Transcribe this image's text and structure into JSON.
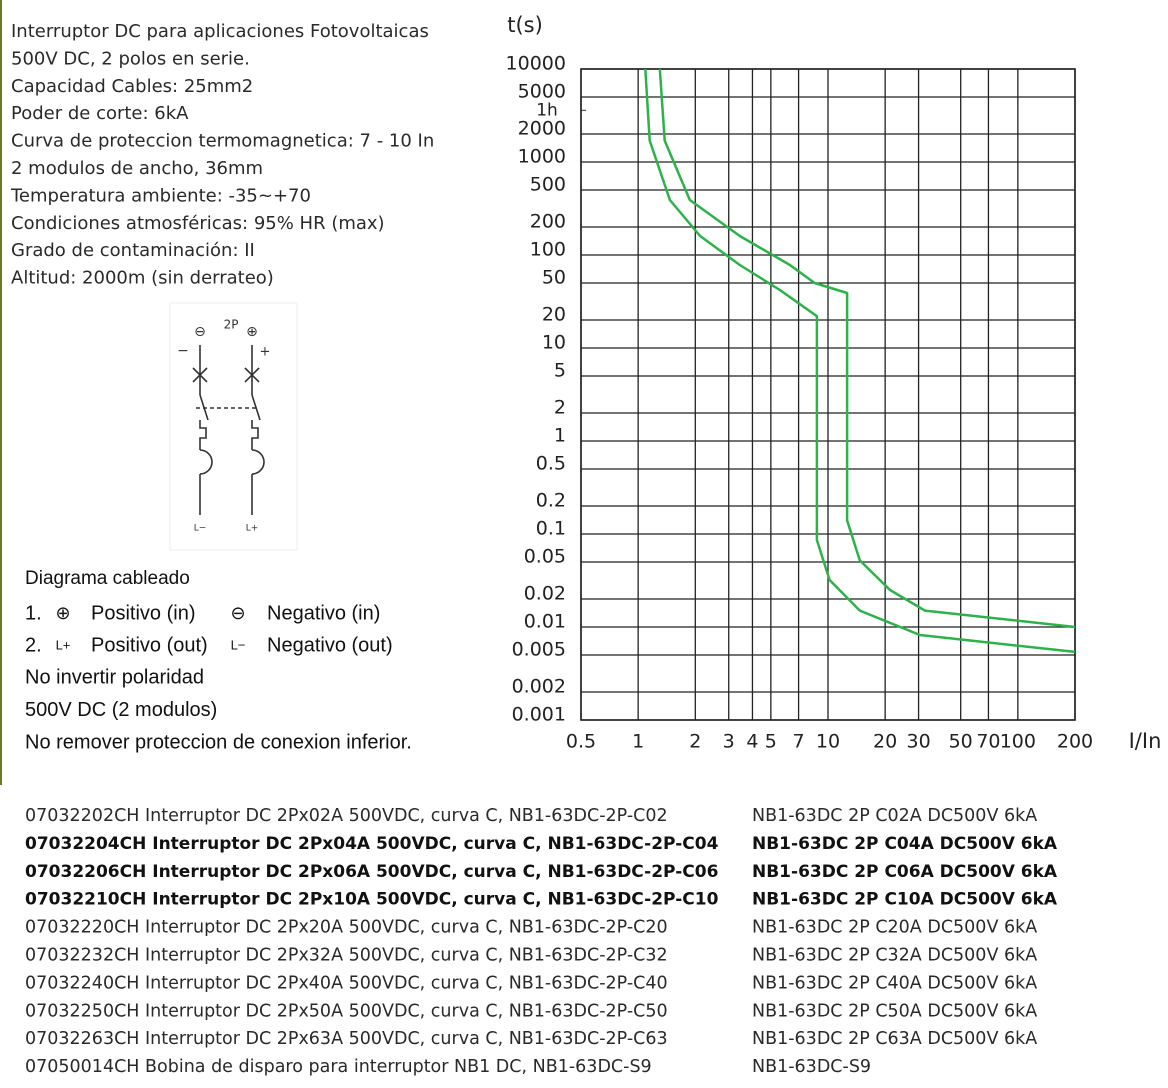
{
  "specs": [
    "Interruptor DC para aplicaciones Fotovoltaicas",
    "500V DC, 2 polos en serie.",
    "Capacidad Cables: 25mm2",
    "Poder de corte: 6kA",
    "Curva de proteccion termomagnetica: 7 - 10 In",
    "2 modulos de ancho, 36mm",
    "Temperatura ambiente: -35~+70",
    "Condiciones atmosféricas: 95% HR (max)",
    "Grado de contaminación: II",
    "Altitud: 2000m (sin derrateo)"
  ],
  "wiring_diagram": {
    "minus_symbol": "⊖",
    "pole_label": "2P",
    "plus_symbol": "⊕",
    "minus_sign": "−",
    "plus_sign": "+",
    "out_minus": "L−",
    "out_plus": "L+"
  },
  "legend": {
    "title": "Diagrama  cableado",
    "items": [
      {
        "number": "1.",
        "plus_symbol": "⊕",
        "plus_text": "Positivo (in)",
        "minus_symbol": "⊖",
        "minus_text": "Negativo (in)"
      },
      {
        "number": "2.",
        "plus_symbol": "L+",
        "plus_text": "Positivo (out)",
        "minus_symbol": "L−",
        "minus_text": "Negativo (out)"
      }
    ],
    "notes": [
      "No invertir polaridad",
      "500V DC (2 modulos)",
      "No remover proteccion de conexion inferior."
    ]
  },
  "chart_data": {
    "type": "line",
    "y_label": "t(s)",
    "x_label": "I/In",
    "log_x": true,
    "log_y": true,
    "grid": true,
    "xlim": [
      0.5,
      200
    ],
    "xticks": [
      0.5,
      1,
      2,
      3,
      4,
      5,
      7,
      10,
      20,
      30,
      50,
      70,
      100,
      200
    ],
    "ylim": [
      0.001,
      10000
    ],
    "yticks": [
      10000,
      5000,
      {
        "value": 3600,
        "label": "1h"
      },
      2000,
      1000,
      500,
      200,
      100,
      50,
      20,
      10,
      5,
      2,
      1,
      0.5,
      0.2,
      0.1,
      0.05,
      0.02,
      0.01,
      0.005,
      0.002,
      0.001
    ],
    "series": [
      {
        "color": "#2db24a",
        "x": [
          1.09,
          1.15,
          1.47,
          2.12,
          3.43,
          5.58,
          8.74,
          8.74,
          10.2,
          14.7,
          30.5,
          200
        ],
        "values": [
          10000,
          1700,
          390,
          160,
          78,
          42,
          22,
          0.086,
          0.032,
          0.015,
          0.0082,
          0.0054
        ]
      },
      {
        "color": "#2db24a",
        "x": [
          1.3,
          1.38,
          1.87,
          3.43,
          6.3,
          8.5,
          12.6,
          12.6,
          14.7,
          21.2,
          32.4,
          200
        ],
        "values": [
          10000,
          1700,
          390,
          160,
          78,
          50,
          39,
          0.14,
          0.052,
          0.025,
          0.015,
          0.01
        ]
      }
    ]
  },
  "products": [
    [
      "07032202CH Interruptor DC 2Px02A 500VDC, curva C, NB1-63DC-2P-C02",
      "NB1-63DC 2P C02A DC500V 6kA"
    ],
    [
      "07032204CH Interruptor DC 2Px04A 500VDC, curva C, NB1-63DC-2P-C04",
      "NB1-63DC 2P C04A DC500V 6kA"
    ],
    [
      "07032206CH Interruptor DC 2Px06A 500VDC, curva C, NB1-63DC-2P-C06",
      "NB1-63DC 2P C06A DC500V 6kA"
    ],
    [
      "07032210CH Interruptor DC 2Px10A 500VDC, curva C, NB1-63DC-2P-C10",
      "NB1-63DC 2P C10A DC500V 6kA"
    ],
    [
      "07032220CH Interruptor DC 2Px20A 500VDC, curva C, NB1-63DC-2P-C20",
      "NB1-63DC 2P C20A DC500V 6kA"
    ],
    [
      "07032232CH Interruptor DC 2Px32A 500VDC, curva C, NB1-63DC-2P-C32",
      "NB1-63DC 2P C32A DC500V 6kA"
    ],
    [
      "07032240CH Interruptor DC 2Px40A 500VDC, curva C, NB1-63DC-2P-C40",
      "NB1-63DC 2P C40A DC500V 6kA"
    ],
    [
      "07032250CH Interruptor DC 2Px50A 500VDC, curva C, NB1-63DC-2P-C50",
      "NB1-63DC 2P C50A DC500V 6kA"
    ],
    [
      "07032263CH Interruptor DC 2Px63A 500VDC, curva C, NB1-63DC-2P-C63",
      "NB1-63DC 2P C63A DC500V 6kA"
    ],
    [
      "07050014CH Bobina de disparo para interruptor NB1 DC, NB1-63DC-S9",
      "NB1-63DC-S9"
    ]
  ]
}
